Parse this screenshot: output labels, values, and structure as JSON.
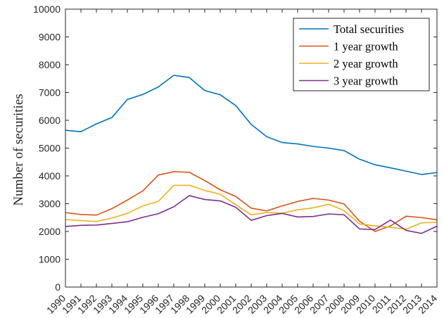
{
  "chart_data": {
    "type": "line",
    "title": "",
    "xlabel": "",
    "ylabel": "Number of securities",
    "xlim": [
      1990,
      2014
    ],
    "ylim": [
      0,
      10000
    ],
    "x": [
      1990,
      1991,
      1992,
      1993,
      1994,
      1995,
      1996,
      1997,
      1998,
      1999,
      2000,
      2001,
      2002,
      2003,
      2004,
      2005,
      2006,
      2007,
      2008,
      2009,
      2010,
      2011,
      2012,
      2013,
      2014
    ],
    "x_tick_labels": [
      "1990",
      "1991",
      "1992",
      "1993",
      "1994",
      "1995",
      "1996",
      "1997",
      "1998",
      "1999",
      "2000",
      "2001",
      "2002",
      "2003",
      "2004",
      "2005",
      "2006",
      "2007",
      "2008",
      "2009",
      "2010",
      "2011",
      "2012",
      "2013",
      "2014"
    ],
    "y_ticks": [
      0,
      1000,
      2000,
      3000,
      4000,
      5000,
      6000,
      7000,
      8000,
      9000,
      10000
    ],
    "y_tick_labels": [
      "0",
      "1000",
      "2000",
      "3000",
      "4000",
      "5000",
      "6000",
      "7000",
      "8000",
      "9000",
      "10000"
    ],
    "grid": false,
    "legend_position": "top-right",
    "series": [
      {
        "name": "Total securities",
        "color": "#0072BD",
        "values": [
          5640,
          5590,
          5870,
          6100,
          6750,
          6930,
          7200,
          7620,
          7540,
          7070,
          6920,
          6530,
          5850,
          5410,
          5200,
          5150,
          5060,
          5000,
          4910,
          4600,
          4400,
          4290,
          4170,
          4050,
          4120
        ]
      },
      {
        "name": "1 year growth",
        "color": "#D95319",
        "values": [
          2680,
          2610,
          2590,
          2820,
          3130,
          3460,
          4030,
          4150,
          4130,
          3830,
          3500,
          3260,
          2840,
          2740,
          2920,
          3080,
          3190,
          3130,
          2990,
          2370,
          2000,
          2200,
          2550,
          2500,
          2420
        ]
      },
      {
        "name": "2 year growth",
        "color": "#EDB120",
        "values": [
          2430,
          2390,
          2360,
          2480,
          2650,
          2920,
          3080,
          3660,
          3660,
          3480,
          3340,
          2960,
          2600,
          2680,
          2660,
          2780,
          2850,
          2980,
          2750,
          2270,
          2200,
          2150,
          2080,
          2310,
          2330
        ]
      },
      {
        "name": "3 year growth",
        "color": "#7E2F8E",
        "values": [
          2180,
          2220,
          2230,
          2290,
          2350,
          2510,
          2640,
          2890,
          3290,
          3150,
          3100,
          2870,
          2400,
          2570,
          2650,
          2520,
          2540,
          2630,
          2600,
          2090,
          2070,
          2410,
          2040,
          1930,
          2190
        ]
      }
    ]
  }
}
